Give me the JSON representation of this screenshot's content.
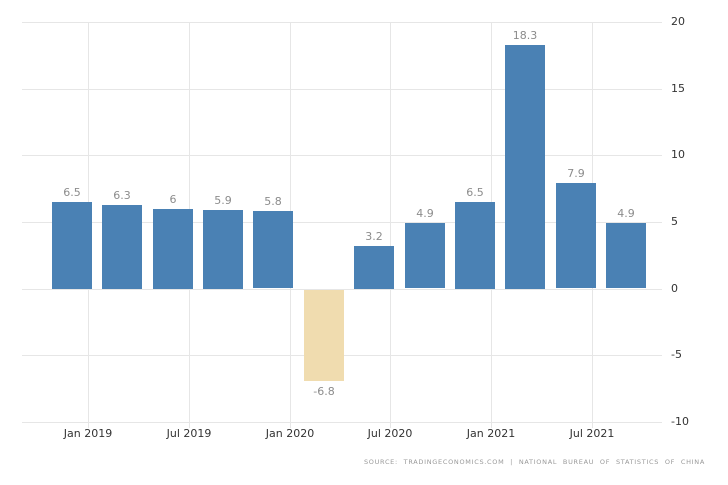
{
  "chart_data": {
    "type": "bar",
    "title": "",
    "xlabel": "",
    "ylabel": "",
    "categories": [
      "2018-Q4",
      "2019-Q1",
      "2019-Q2",
      "2019-Q3",
      "2019-Q4",
      "2020-Q1",
      "2020-Q2",
      "2020-Q3",
      "2020-Q4",
      "2021-Q1",
      "2021-Q2",
      "2021-Q3"
    ],
    "values": [
      6.5,
      6.3,
      6,
      5.9,
      5.8,
      -6.8,
      3.2,
      4.9,
      6.5,
      18.3,
      7.9,
      4.9
    ],
    "labels": [
      "6.5",
      "6.3",
      "6",
      "5.9",
      "5.8",
      "-6.8",
      "3.2",
      "4.9",
      "6.5",
      "18.3",
      "7.9",
      "4.9"
    ],
    "x_tick_labels": [
      "Jan 2019",
      "Jul 2019",
      "Jan 2020",
      "Jul 2020",
      "Jan 2021",
      "Jul 2021"
    ],
    "y_ticks": [
      20,
      15,
      10,
      5,
      0,
      -5,
      -10
    ],
    "y_tick_labels": [
      "20",
      "15",
      "10",
      "5",
      "0",
      "-5",
      "-10"
    ],
    "ylim": [
      -10,
      20
    ],
    "grid": true,
    "legend": "none",
    "colors": {
      "bar_positive": "#4A81B4",
      "bar_negative": "#F0DCAF",
      "data_label": "#8C8C8C",
      "axis_label": "#333333",
      "gridline": "#E6E6E6",
      "background": "#FFFFFF"
    }
  },
  "footer": {
    "source_text": "SOURCE: TRADINGECONOMICS.COM | NATIONAL BUREAU OF STATISTICS OF CHINA"
  }
}
